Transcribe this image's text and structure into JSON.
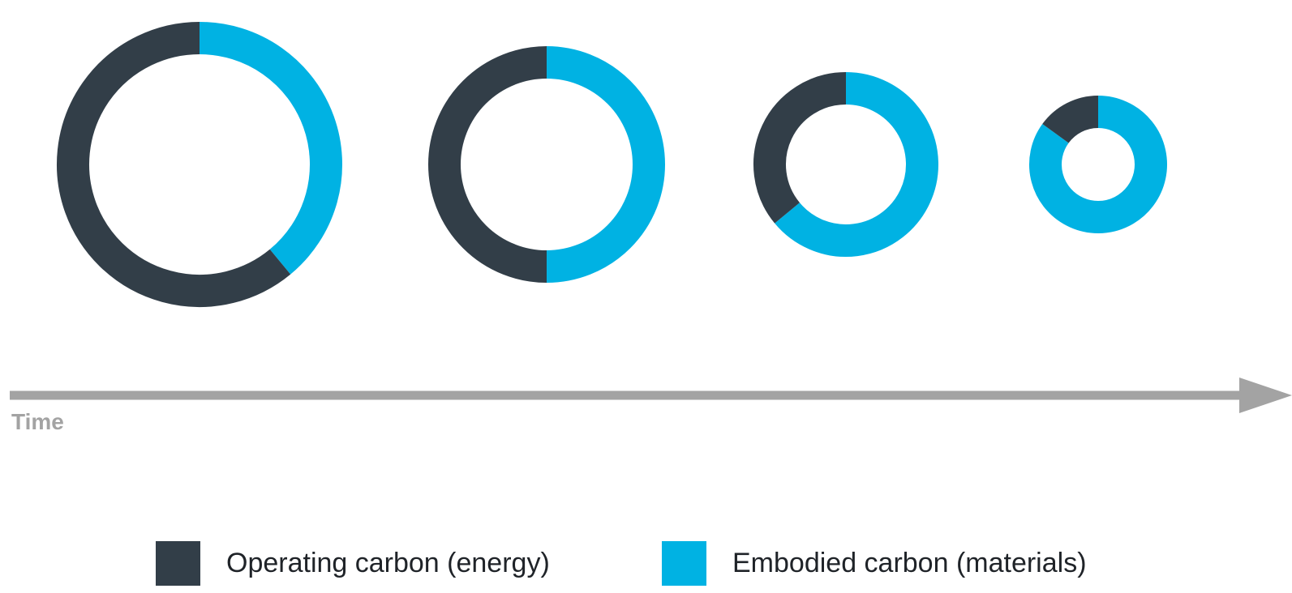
{
  "chart_data": {
    "type": "donut",
    "axis_label": "Time",
    "series_names": [
      "Operating carbon (energy)",
      "Embodied carbon (materials)"
    ],
    "colors": {
      "operating": "#323e48",
      "embodied": "#00b2e3",
      "axis": "#a3a3a3"
    },
    "rings": [
      {
        "operating": 0.61,
        "embodied": 0.39
      },
      {
        "operating": 0.5,
        "embodied": 0.5
      },
      {
        "operating": 0.36,
        "embodied": 0.64
      },
      {
        "operating": 0.15,
        "embodied": 0.85
      }
    ]
  },
  "legend": [
    {
      "label": "Operating carbon (energy)",
      "color": "#323e48"
    },
    {
      "label": "Embodied carbon (materials)",
      "color": "#00b2e3"
    }
  ]
}
